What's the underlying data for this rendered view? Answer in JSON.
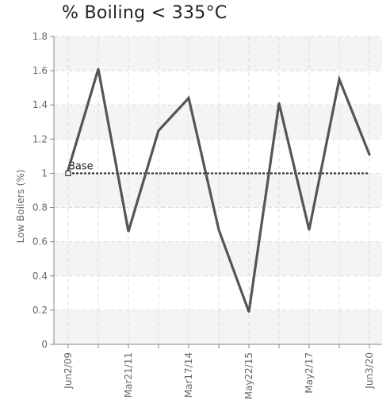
{
  "chart_data": {
    "type": "line",
    "title": "% Boiling < 335°C",
    "ylabel": "Low Boilers (%)",
    "xlabel": "",
    "ylim": [
      0,
      1.8
    ],
    "yticks": [
      0,
      0.2,
      0.4,
      0.6,
      0.8,
      1,
      1.2,
      1.4,
      1.6,
      1.8
    ],
    "ytick_labels": [
      "0",
      "0.2",
      "0.4",
      "0.6",
      "0.8",
      "1",
      "1.2",
      "1.4",
      "1.6",
      "1.8"
    ],
    "x_tick_labels": [
      "Jun2/09",
      "Mar21/11",
      "Mar17/14",
      "May22/15",
      "May2/17",
      "Jun3/20"
    ],
    "x_tick_label_positions": [
      0,
      2,
      4,
      6,
      8,
      10
    ],
    "grid": true,
    "series": [
      {
        "values": [
          1.02,
          1.61,
          0.66,
          1.25,
          1.44,
          0.67,
          0.19,
          1.41,
          0.67,
          1.55,
          1.11
        ],
        "color": "#555555"
      }
    ],
    "reference_line": {
      "label": "Base",
      "value": 1.0,
      "color": "#333333"
    }
  }
}
